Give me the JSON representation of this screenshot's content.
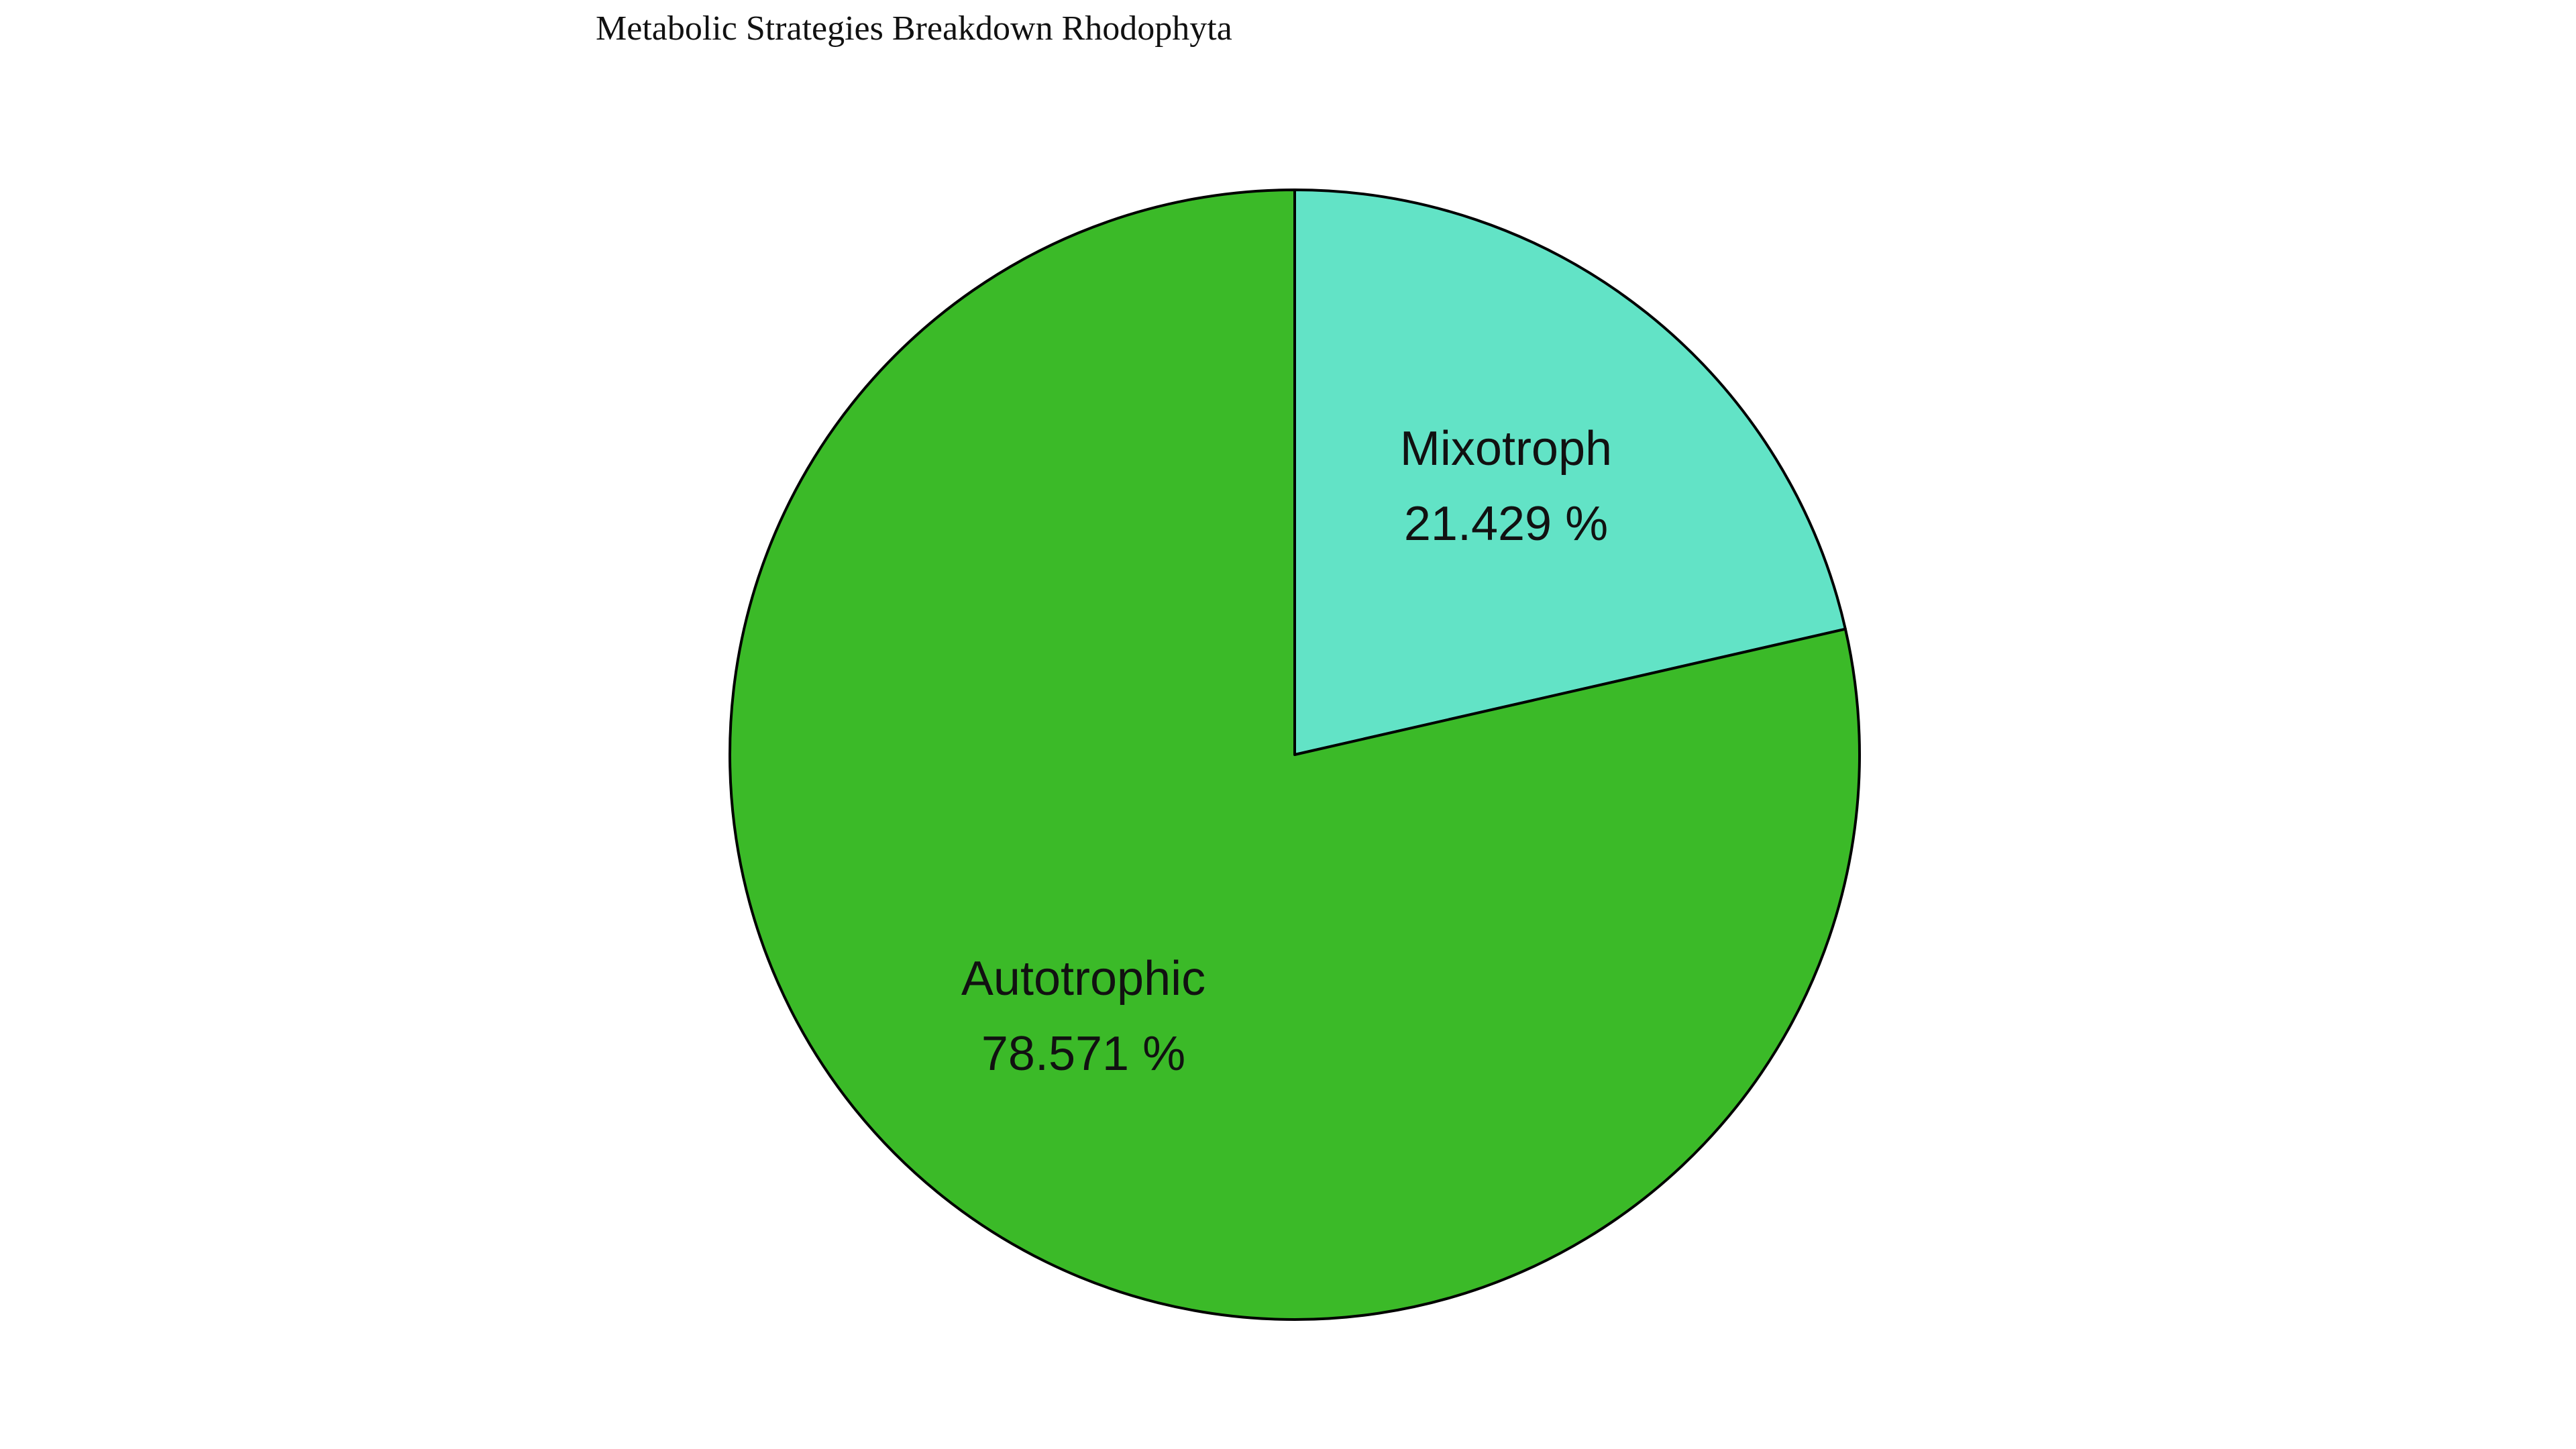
{
  "chart_data": {
    "type": "pie",
    "title": "Metabolic Strategies Breakdown Rhodophyta",
    "slices": [
      {
        "label": "Mixotroph",
        "value": 21.429,
        "display": "21.429 %",
        "color": "#62e3c6"
      },
      {
        "label": "Autotrophic",
        "value": 78.571,
        "display": "78.571 %",
        "color": "#3bba28"
      }
    ],
    "start_angle_deg": 90,
    "direction": "clockwise",
    "edge_color": "#000000"
  }
}
